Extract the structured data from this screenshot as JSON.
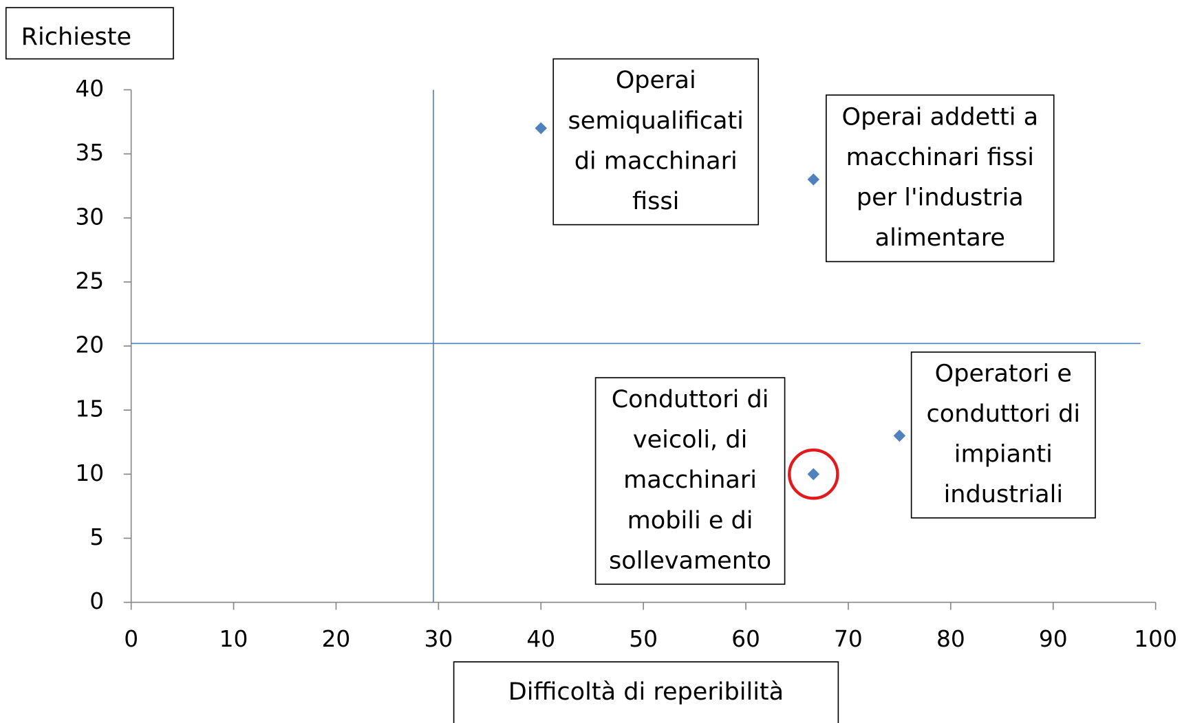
{
  "chart_data": {
    "type": "scatter",
    "xlabel": "Difficoltà di reperibilità",
    "ylabel": "Richieste",
    "x": [
      40,
      66.6,
      66.6,
      75
    ],
    "values": [
      37,
      33,
      10,
      13
    ],
    "labels": [
      [
        "Operai",
        "semiqualificati",
        "di macchinari",
        "fissi"
      ],
      [
        "Operai addetti a",
        "macchinari fissi",
        "per l'industria",
        "alimentare"
      ],
      [
        "Conduttori di",
        "veicoli, di",
        "macchinari",
        "mobili e di",
        "sollevamento"
      ],
      [
        "Operatori e",
        "conduttori di",
        "impianti",
        "industriali"
      ]
    ],
    "color": "#4f81bd",
    "highlight_index": 2,
    "highlight_color": "#e31a1c",
    "reference_lines": {
      "x": 29.5,
      "y": 20.2
    },
    "xlim": [
      0,
      100
    ],
    "xticks": [
      0,
      10,
      20,
      30,
      40,
      50,
      60,
      70,
      80,
      90,
      100
    ],
    "ylim": [
      0,
      40
    ],
    "yticks": [
      0,
      5,
      10,
      15,
      20,
      25,
      30,
      35,
      40
    ]
  }
}
